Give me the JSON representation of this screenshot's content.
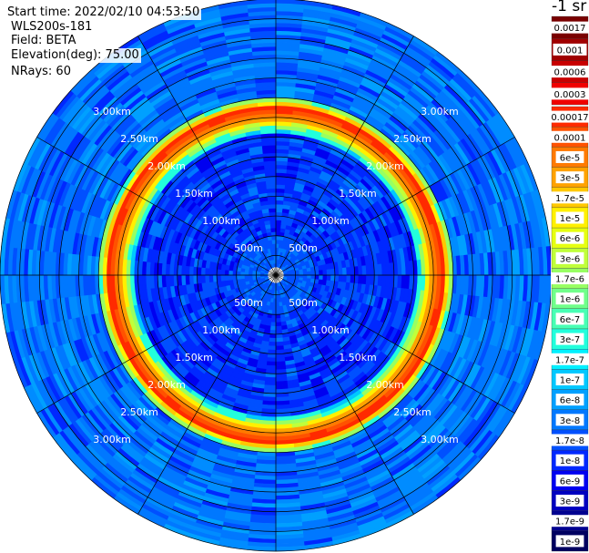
{
  "info": {
    "start_time": "Start time: 2022/02/10 04:53:50",
    "instrument": "WLS200s-181",
    "field": "Field: BETA",
    "elevation": "Elevation(deg): 75.00",
    "nrays": "NRays: 60"
  },
  "colorbar": {
    "unit_label": "-1 sr",
    "entries": [
      {
        "label": "0.0017",
        "color": "#7a0000"
      },
      {
        "label": "0.001",
        "color": "#a00000"
      },
      {
        "label": "0.0006",
        "color": "#c80000"
      },
      {
        "label": "0.0003",
        "color": "#f00000"
      },
      {
        "label": "0.00017",
        "color": "#ff2a00"
      },
      {
        "label": "0.0001",
        "color": "#ff5200"
      },
      {
        "label": "6e-5",
        "color": "#ff7a00"
      },
      {
        "label": "3e-5",
        "color": "#ffa200"
      },
      {
        "label": "1.7e-5",
        "color": "#ffc800"
      },
      {
        "label": "1e-5",
        "color": "#fff000"
      },
      {
        "label": "6e-6",
        "color": "#e6ff10"
      },
      {
        "label": "3e-6",
        "color": "#c0ff3a"
      },
      {
        "label": "1.7e-6",
        "color": "#98ff62"
      },
      {
        "label": "1e-6",
        "color": "#70ff8a"
      },
      {
        "label": "6e-7",
        "color": "#48ffb4"
      },
      {
        "label": "3e-7",
        "color": "#22ffdc"
      },
      {
        "label": "1.7e-7",
        "color": "#00f0ff"
      },
      {
        "label": "1e-7",
        "color": "#00c8ff"
      },
      {
        "label": "6e-8",
        "color": "#00a0ff"
      },
      {
        "label": "3e-8",
        "color": "#0078ff"
      },
      {
        "label": "1.7e-8",
        "color": "#0050ff"
      },
      {
        "label": "1e-8",
        "color": "#0028ff"
      },
      {
        "label": "6e-9",
        "color": "#0000f0"
      },
      {
        "label": "3e-9",
        "color": "#0000c0"
      },
      {
        "label": "1.7e-9",
        "color": "#000090"
      },
      {
        "label": "1e-9",
        "color": "#000060"
      }
    ]
  },
  "chart_data": {
    "type": "heatmap",
    "projection": "polar (PPI scan)",
    "field": "BETA",
    "range_unit": "km",
    "nrays": 60,
    "max_range_km": 3.5,
    "range_rings_km": [
      0.25,
      0.5,
      0.75,
      1.0,
      1.25,
      1.5,
      1.75,
      2.0,
      2.25,
      2.5,
      2.75,
      3.0,
      3.25,
      3.5
    ],
    "ring_labels": [
      "500m",
      "1.00km",
      "1.50km",
      "2.00km",
      "2.50km",
      "3.00km"
    ],
    "ring_label_values_km": [
      0.5,
      1.0,
      1.5,
      2.0,
      2.5,
      3.0
    ],
    "azimuth_lines_deg": [
      0,
      30,
      60,
      90,
      120,
      150,
      180,
      210,
      240,
      270,
      300,
      330
    ],
    "range_bands": [
      {
        "from_km": 0.1,
        "to_km": 0.5,
        "beta": "1e-8"
      },
      {
        "from_km": 0.5,
        "to_km": 1.8,
        "beta": "3e-9 to 1e-8"
      },
      {
        "from_km": 1.8,
        "to_km": 1.85,
        "beta": "3e-7"
      },
      {
        "from_km": 1.85,
        "to_km": 1.9,
        "beta": "1.7e-6"
      },
      {
        "from_km": 1.9,
        "to_km": 1.95,
        "beta": "1e-5"
      },
      {
        "from_km": 1.95,
        "to_km": 2.0,
        "beta": "3e-5"
      },
      {
        "from_km": 2.0,
        "to_km": 2.05,
        "beta": "6e-5"
      },
      {
        "from_km": 2.05,
        "to_km": 2.1,
        "beta": "0.0001"
      },
      {
        "from_km": 2.1,
        "to_km": 2.15,
        "beta": "0.00017"
      },
      {
        "from_km": 2.15,
        "to_km": 2.2,
        "beta": "1.7e-5"
      },
      {
        "from_km": 2.2,
        "to_km": 2.25,
        "beta": "1.7e-6"
      },
      {
        "from_km": 2.25,
        "to_km": 3.5,
        "beta": "1e-8 to 1e-7"
      }
    ]
  }
}
